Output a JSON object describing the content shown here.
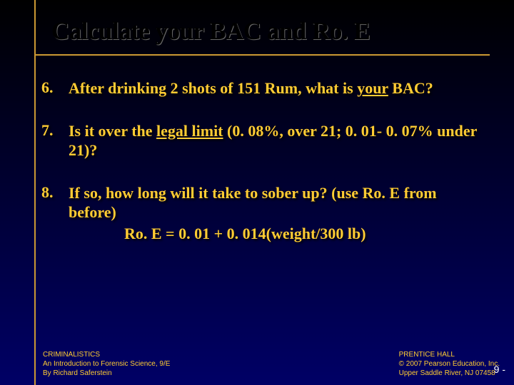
{
  "title": "Calculate your BAC and Ro. E",
  "questions": [
    {
      "num": "6.",
      "text_pre": "After drinking 2 shots of 151 Rum, what is ",
      "underlined": "your",
      "text_post": " BAC?"
    },
    {
      "num": "7.",
      "text_pre": "Is it over the ",
      "underlined": "legal limit",
      "text_post": " (0. 08%, over 21; 0. 01- 0. 07% under 21)?"
    },
    {
      "num": "8.",
      "text_pre": "If so, how long will it take to sober up? (use Ro. E from before)",
      "underlined": "",
      "text_post": "",
      "formula": "Ro. E = 0. 01 + 0. 014(weight/300 lb)"
    }
  ],
  "footer_left": {
    "line1": "CRIMINALISTICS",
    "line2": "An Introduction to Forensic Science, 9/E",
    "line3": "By Richard Saferstein"
  },
  "footer_right": {
    "line1": "PRENTICE HALL",
    "line2": "© 2007 Pearson Education, Inc.",
    "line3": "Upper Saddle River, NJ 07458"
  },
  "pagenum": "9 -",
  "colors": {
    "accent": "#cc9933",
    "text": "#ffcc33",
    "bg_top": "#000000",
    "bg_bottom": "#000066"
  }
}
